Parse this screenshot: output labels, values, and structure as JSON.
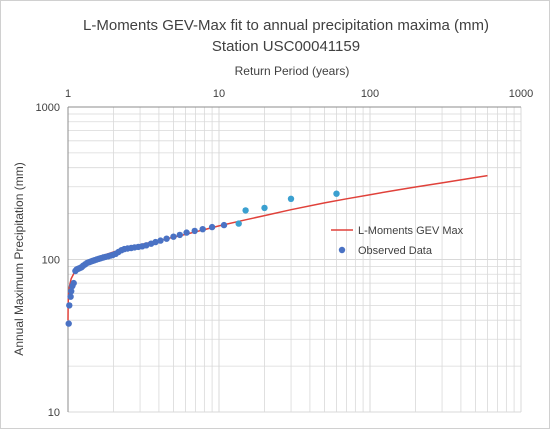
{
  "chart_data": {
    "type": "scatter",
    "title": "L-Moments GEV-Max fit to annual precipitation maxima (mm)",
    "subtitle": "Station USC00041159",
    "xlabel": "Return Period (years)",
    "ylabel": "Annual Maximum Precipitation (mm)",
    "x_scale": "log",
    "y_scale": "log",
    "xlim": [
      1,
      1000
    ],
    "ylim": [
      10,
      1000
    ],
    "x_ticks": [
      1,
      10,
      100,
      1000
    ],
    "x_tick_labels": [
      "1",
      "10",
      "100",
      "1000"
    ],
    "y_ticks": [
      10,
      100,
      1000
    ],
    "y_tick_labels": [
      "10",
      "100",
      "1000"
    ],
    "grid": true,
    "x_axis_position": "top",
    "legend": {
      "position": "right",
      "entries": [
        "L-Moments GEV Max",
        "Observed Data"
      ]
    },
    "colors": {
      "fit_line": "#e0413a",
      "observed": "#4a72c4",
      "observed_upper": "#3ba0d0",
      "grid": "#d9d9d9",
      "axis": "#8c8c8c"
    },
    "series": [
      {
        "name": "L-Moments GEV Max",
        "kind": "line",
        "x": [
          1.0003,
          1.002,
          1.005,
          1.01,
          1.02,
          1.05,
          1.1,
          1.2,
          1.3,
          1.5,
          1.7,
          2.0,
          2.3,
          2.7,
          3.0,
          4.0,
          5.0,
          6.0,
          7.0,
          8.0,
          10.0,
          15.0,
          20.0,
          30.0,
          50.0,
          70.0,
          100.0,
          150.0,
          200.0,
          300.0,
          500.0,
          600.0
        ],
        "y": [
          40.0,
          48.0,
          55.0,
          60.0,
          66.0,
          75.0,
          82.0,
          90.0,
          95.0,
          101.0,
          106.0,
          112.0,
          117.0,
          122.0,
          125.0,
          133.0,
          140.0,
          146.0,
          152.0,
          157.0,
          166.0,
          182.0,
          194.0,
          212.0,
          235.0,
          250.0,
          266.0,
          285.0,
          299.0,
          318.0,
          345.0,
          355.0
        ]
      },
      {
        "name": "Observed Data",
        "kind": "scatter",
        "x": [
          1.01,
          1.02,
          1.04,
          1.05,
          1.07,
          1.09,
          1.12,
          1.14,
          1.17,
          1.2,
          1.23,
          1.26,
          1.3,
          1.34,
          1.38,
          1.42,
          1.46,
          1.5,
          1.55,
          1.6,
          1.65,
          1.71,
          1.77,
          1.84,
          1.91,
          1.98,
          2.07,
          2.16,
          2.26,
          2.36,
          2.48,
          2.62,
          2.76,
          2.92,
          3.1,
          3.3,
          3.55,
          3.8,
          4.1,
          4.5,
          5.0,
          5.5,
          6.1,
          6.9,
          7.8,
          9.0,
          10.8,
          13.5,
          15.0,
          20.0,
          30.0,
          60.0
        ],
        "y": [
          38,
          50,
          57,
          62,
          67,
          70,
          84,
          86,
          87,
          88,
          89,
          91,
          93,
          95,
          96,
          97,
          98,
          99,
          100,
          101,
          102,
          103,
          104,
          105,
          106,
          107,
          109,
          112,
          115,
          117,
          118,
          119,
          120,
          121,
          122,
          124,
          127,
          130,
          133,
          137,
          141,
          145,
          150,
          154,
          158,
          163,
          168,
          172,
          210,
          218,
          250,
          270
        ]
      }
    ]
  }
}
